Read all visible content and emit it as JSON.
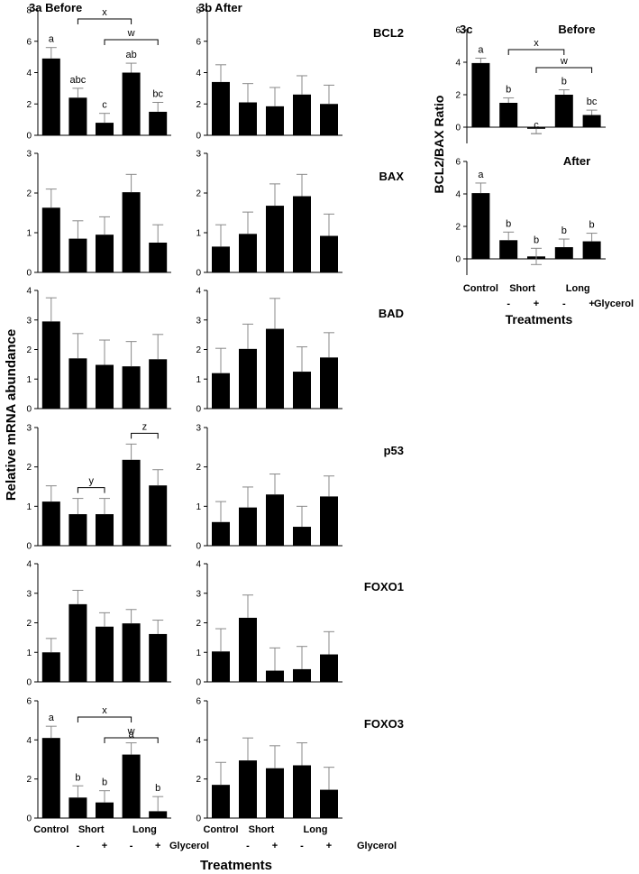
{
  "figure": {
    "left_title": "3a Before",
    "mid_title": "3b After",
    "c_label": "3c",
    "c_ylabel": "BCL2/BAX Ratio",
    "ylabel": "Relative mRNA abundance",
    "xlabel": "Treatments",
    "c_xlabel": "Treatments",
    "xcats": [
      "Control",
      "Short",
      "Long"
    ],
    "signs": [
      "-",
      "+",
      "-",
      "+"
    ],
    "glycerol": "Glycerol"
  },
  "chart_data": [
    {
      "id": "bcl2-before",
      "type": "bar",
      "gene": "BCL2",
      "panel": "3a",
      "ylim": [
        0,
        8
      ],
      "ticks": [
        0,
        2,
        4,
        6,
        8
      ],
      "categories": [
        "Control",
        "Short -",
        "Short +",
        "Long -",
        "Long +"
      ],
      "values": [
        4.9,
        2.4,
        0.8,
        4.0,
        1.5
      ],
      "errors": [
        0.7,
        0.6,
        0.6,
        0.6,
        0.6
      ],
      "letters": [
        "a",
        "abc",
        "c",
        "ab",
        "bc"
      ],
      "brackets": [
        {
          "from": 1,
          "to": 3,
          "label": "x"
        },
        {
          "from": 2,
          "to": 4,
          "label": "w"
        }
      ]
    },
    {
      "id": "bcl2-after",
      "type": "bar",
      "gene": "BCL2",
      "panel": "3b",
      "ylim": [
        0,
        8
      ],
      "ticks": [
        0,
        2,
        4,
        6,
        8
      ],
      "categories": [
        "Control",
        "Short -",
        "Short +",
        "Long -",
        "Long +"
      ],
      "values": [
        3.4,
        2.1,
        1.85,
        2.6,
        2.0
      ],
      "errors": [
        1.1,
        1.2,
        1.2,
        1.2,
        1.2
      ],
      "letters": [],
      "brackets": []
    },
    {
      "id": "bax-before",
      "type": "bar",
      "gene": "BAX",
      "panel": "3a",
      "ylim": [
        0,
        3
      ],
      "ticks": [
        0,
        1,
        2,
        3
      ],
      "categories": [
        "Control",
        "Short -",
        "Short +",
        "Long -",
        "Long +"
      ],
      "values": [
        1.63,
        0.85,
        0.95,
        2.02,
        0.75
      ],
      "errors": [
        0.47,
        0.45,
        0.45,
        0.45,
        0.45
      ],
      "letters": [],
      "brackets": []
    },
    {
      "id": "bax-after",
      "type": "bar",
      "gene": "BAX",
      "panel": "3b",
      "ylim": [
        0,
        3
      ],
      "ticks": [
        0,
        1,
        2,
        3
      ],
      "categories": [
        "Control",
        "Short -",
        "Short +",
        "Long -",
        "Long +"
      ],
      "values": [
        0.65,
        0.97,
        1.68,
        1.92,
        0.92
      ],
      "errors": [
        0.55,
        0.55,
        0.55,
        0.55,
        0.55
      ],
      "letters": [],
      "brackets": []
    },
    {
      "id": "bad-before",
      "type": "bar",
      "gene": "BAD",
      "panel": "3a",
      "ylim": [
        0,
        4
      ],
      "ticks": [
        0,
        1,
        2,
        3,
        4
      ],
      "categories": [
        "Control",
        "Short -",
        "Short +",
        "Long -",
        "Long +"
      ],
      "values": [
        2.95,
        1.7,
        1.48,
        1.43,
        1.67
      ],
      "errors": [
        0.8,
        0.84,
        0.84,
        0.84,
        0.84
      ],
      "letters": [],
      "brackets": []
    },
    {
      "id": "bad-after",
      "type": "bar",
      "gene": "BAD",
      "panel": "3b",
      "ylim": [
        0,
        4
      ],
      "ticks": [
        0,
        1,
        2,
        3,
        4
      ],
      "categories": [
        "Control",
        "Short -",
        "Short +",
        "Long -",
        "Long +"
      ],
      "values": [
        1.2,
        2.02,
        2.7,
        1.25,
        1.73
      ],
      "errors": [
        0.84,
        0.84,
        1.03,
        0.84,
        0.84
      ],
      "letters": [],
      "brackets": []
    },
    {
      "id": "p53-before",
      "type": "bar",
      "gene": "p53",
      "panel": "3a",
      "ylim": [
        0,
        3
      ],
      "ticks": [
        0,
        1,
        2,
        3
      ],
      "categories": [
        "Control",
        "Short -",
        "Short +",
        "Long -",
        "Long +"
      ],
      "values": [
        1.12,
        0.8,
        0.8,
        2.18,
        1.53
      ],
      "errors": [
        0.4,
        0.4,
        0.4,
        0.4,
        0.4
      ],
      "letters": [],
      "brackets": [
        {
          "from": 1,
          "to": 2,
          "label": "y"
        },
        {
          "from": 3,
          "to": 4,
          "label": "z"
        }
      ]
    },
    {
      "id": "p53-after",
      "type": "bar",
      "gene": "p53",
      "panel": "3b",
      "ylim": [
        0,
        3
      ],
      "ticks": [
        0,
        1,
        2,
        3
      ],
      "categories": [
        "Control",
        "Short -",
        "Short +",
        "Long -",
        "Long +"
      ],
      "values": [
        0.6,
        0.97,
        1.3,
        0.48,
        1.25
      ],
      "errors": [
        0.52,
        0.52,
        0.52,
        0.52,
        0.52
      ],
      "letters": [],
      "brackets": []
    },
    {
      "id": "foxo1-before",
      "type": "bar",
      "gene": "FOXO1",
      "panel": "3a",
      "ylim": [
        0,
        4
      ],
      "ticks": [
        0,
        1,
        2,
        3,
        4
      ],
      "categories": [
        "Control",
        "Short -",
        "Short +",
        "Long -",
        "Long +"
      ],
      "values": [
        1.0,
        2.63,
        1.87,
        1.98,
        1.62
      ],
      "errors": [
        0.47,
        0.47,
        0.47,
        0.47,
        0.47
      ],
      "letters": [],
      "brackets": []
    },
    {
      "id": "foxo1-after",
      "type": "bar",
      "gene": "FOXO1",
      "panel": "3b",
      "ylim": [
        0,
        4
      ],
      "ticks": [
        0,
        1,
        2,
        3,
        4
      ],
      "categories": [
        "Control",
        "Short -",
        "Short +",
        "Long -",
        "Long +"
      ],
      "values": [
        1.03,
        2.17,
        0.38,
        0.43,
        0.93
      ],
      "errors": [
        0.77,
        0.77,
        0.77,
        0.77,
        0.77
      ],
      "letters": [],
      "brackets": []
    },
    {
      "id": "foxo3-before",
      "type": "bar",
      "gene": "FOXO3",
      "panel": "3a",
      "ylim": [
        0,
        6
      ],
      "ticks": [
        0,
        2,
        4,
        6
      ],
      "categories": [
        "Control",
        "Short -",
        "Short +",
        "Long -",
        "Long +"
      ],
      "values": [
        4.1,
        1.05,
        0.8,
        3.25,
        0.35
      ],
      "errors": [
        0.6,
        0.6,
        0.6,
        0.6,
        0.75
      ],
      "letters": [
        "a",
        "b",
        "b",
        "a",
        "b"
      ],
      "brackets": [
        {
          "from": 1,
          "to": 3,
          "label": "x"
        },
        {
          "from": 2,
          "to": 4,
          "label": "w"
        }
      ]
    },
    {
      "id": "foxo3-after",
      "type": "bar",
      "gene": "FOXO3",
      "panel": "3b",
      "ylim": [
        0,
        6
      ],
      "ticks": [
        0,
        2,
        4,
        6
      ],
      "categories": [
        "Control",
        "Short -",
        "Short +",
        "Long -",
        "Long +"
      ],
      "values": [
        1.7,
        2.95,
        2.55,
        2.7,
        1.45
      ],
      "errors": [
        1.15,
        1.15,
        1.15,
        1.15,
        1.15
      ],
      "letters": [],
      "brackets": []
    },
    {
      "id": "ratio-before",
      "type": "bar",
      "gene": "",
      "panel": "3c",
      "subtitle": "Before",
      "ylim": [
        -1,
        6
      ],
      "ticks": [
        0,
        2,
        4,
        6
      ],
      "categories": [
        "Control",
        "Short -",
        "Short +",
        "Long -",
        "Long +"
      ],
      "values": [
        3.95,
        1.5,
        -0.1,
        2.0,
        0.75
      ],
      "errors": [
        0.3,
        0.3,
        0.3,
        0.3,
        0.3
      ],
      "letters": [
        "a",
        "b",
        "c",
        "b",
        "bc"
      ],
      "brackets": [
        {
          "from": 1,
          "to": 3,
          "label": "x"
        },
        {
          "from": 2,
          "to": 4,
          "label": "w"
        }
      ]
    },
    {
      "id": "ratio-after",
      "type": "bar",
      "gene": "",
      "panel": "3c",
      "subtitle": "After",
      "ylim": [
        -1,
        6
      ],
      "ticks": [
        0,
        2,
        4,
        6
      ],
      "categories": [
        "Control",
        "Short -",
        "Short +",
        "Long -",
        "Long +"
      ],
      "values": [
        4.05,
        1.15,
        0.15,
        0.72,
        1.08
      ],
      "errors": [
        0.62,
        0.5,
        0.5,
        0.5,
        0.5
      ],
      "letters": [
        "a",
        "b",
        "b",
        "b",
        "b"
      ],
      "brackets": []
    }
  ]
}
